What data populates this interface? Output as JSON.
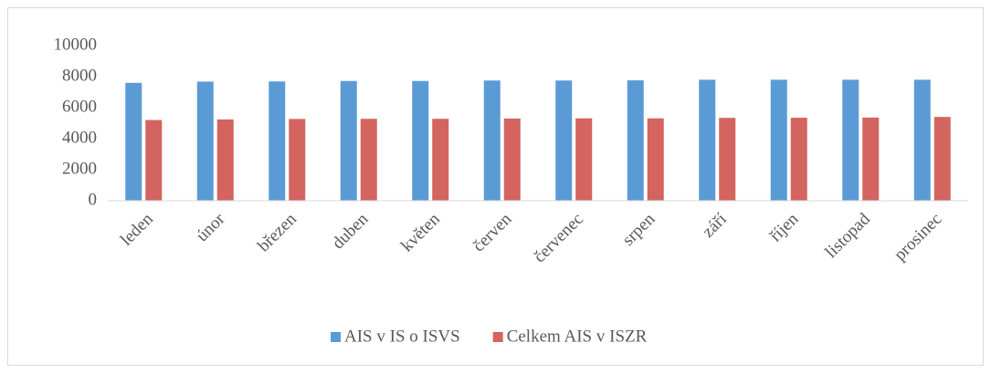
{
  "chart_data": {
    "type": "bar",
    "categories": [
      "leden",
      "únor",
      "březen",
      "duben",
      "květen",
      "červen",
      "červenec",
      "srpen",
      "září",
      "říjen",
      "listopad",
      "prosinec"
    ],
    "series": [
      {
        "name": "AIS v IS o ISVS",
        "color": "#5b9bd5",
        "values": [
          7600,
          7680,
          7690,
          7720,
          7720,
          7750,
          7750,
          7760,
          7800,
          7800,
          7800,
          7800
        ]
      },
      {
        "name": "Celkem AIS v ISZR",
        "color": "#d3645f",
        "values": [
          5200,
          5240,
          5270,
          5280,
          5280,
          5300,
          5310,
          5310,
          5340,
          5350,
          5360,
          5400
        ]
      }
    ],
    "ylim": [
      0,
      10000
    ],
    "yticks": [
      0,
      2000,
      4000,
      6000,
      8000,
      10000
    ],
    "grid": false,
    "legend": "bottom"
  }
}
